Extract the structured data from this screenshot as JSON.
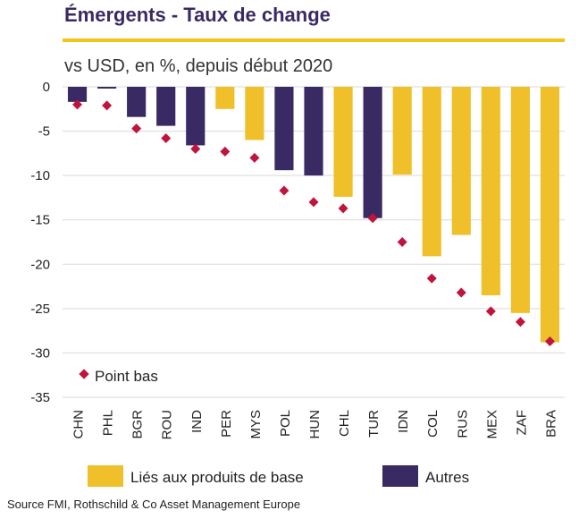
{
  "header": {
    "title": "Émergents - Taux de change",
    "subtitle": "vs USD, en %, depuis début 2020"
  },
  "source": "Source FMI, Rothschild & Co Asset Management  Europe",
  "colors": {
    "commodity": "#f0c02a",
    "other": "#3a2a63",
    "low_point": "#c0143c",
    "rule": "#f0c419"
  },
  "chart_data": {
    "type": "bar",
    "ylim": [
      -35,
      0
    ],
    "yticks": [
      0,
      -5,
      -10,
      -15,
      -20,
      -25,
      -30,
      -35
    ],
    "categories": [
      "CHN",
      "PHL",
      "BGR",
      "ROU",
      "IND",
      "PER",
      "MYS",
      "POL",
      "HUN",
      "CHL",
      "TUR",
      "IDN",
      "COL",
      "RUS",
      "MEX",
      "ZAF",
      "BRA"
    ],
    "values": [
      -1.7,
      -0.2,
      -3.4,
      -4.4,
      -6.6,
      -2.5,
      -6.0,
      -9.4,
      -10.0,
      -12.4,
      -14.8,
      -9.9,
      -19.1,
      -16.7,
      -23.5,
      -25.5,
      -28.8
    ],
    "group": [
      "other",
      "other",
      "other",
      "other",
      "other",
      "commodity",
      "commodity",
      "other",
      "other",
      "commodity",
      "other",
      "commodity",
      "commodity",
      "commodity",
      "commodity",
      "commodity",
      "commodity"
    ],
    "low_points": [
      -2.0,
      -2.1,
      -4.7,
      -5.8,
      -7.0,
      -7.3,
      -8.0,
      -11.7,
      -13.0,
      -13.7,
      -14.8,
      -17.5,
      -21.6,
      -23.2,
      -25.3,
      -26.5,
      -28.7
    ],
    "series": [
      {
        "name": "Liés aux produits de base",
        "key": "commodity"
      },
      {
        "name": "Autres",
        "key": "other"
      },
      {
        "name": "Point bas",
        "key": "low_point"
      }
    ]
  }
}
